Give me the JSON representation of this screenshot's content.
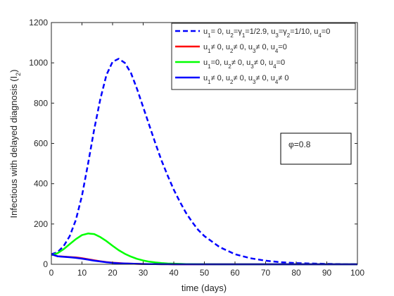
{
  "chart_data": {
    "type": "line",
    "xlabel": "time (days)",
    "ylabel": "Infectious with delayed diagnosis (I2)",
    "xlim": [
      0,
      100
    ],
    "ylim": [
      0,
      1200
    ],
    "xticks": [
      0,
      10,
      20,
      30,
      40,
      50,
      60,
      70,
      80,
      90,
      100
    ],
    "yticks": [
      0,
      200,
      400,
      600,
      800,
      1000,
      1200
    ],
    "grid": false,
    "legend_position": "top-right",
    "annotation": "φ=0.8",
    "x": [
      0,
      2,
      4,
      6,
      8,
      10,
      12,
      14,
      16,
      18,
      20,
      22,
      24,
      26,
      28,
      30,
      32,
      34,
      36,
      38,
      40,
      42,
      44,
      46,
      48,
      50,
      55,
      60,
      65,
      70,
      75,
      80,
      85,
      90,
      95,
      100
    ],
    "series": [
      {
        "name": "u1= 0, u2=γ1=1/2.9, u3=γ2=1/10, u4=0",
        "color": "#0000ff",
        "dash": "dashed",
        "values": [
          50,
          60,
          90,
          140,
          220,
          340,
          500,
          670,
          820,
          940,
          1005,
          1020,
          1000,
          950,
          870,
          780,
          690,
          600,
          515,
          440,
          370,
          310,
          255,
          210,
          170,
          140,
          85,
          50,
          30,
          18,
          10,
          6,
          4,
          2,
          1,
          1
        ]
      },
      {
        "name": "u1≠ 0, u2≠ 0, u3≠ 0, u4=0",
        "color": "#ff0000",
        "dash": "solid",
        "values": [
          50,
          40,
          38,
          36,
          34,
          30,
          25,
          20,
          15,
          11,
          8,
          6,
          4,
          3,
          2,
          1.5,
          1,
          1,
          0.5,
          0.5,
          0,
          0,
          0,
          0,
          0,
          0,
          0,
          0,
          0,
          0,
          0,
          0,
          0,
          0,
          0,
          0
        ]
      },
      {
        "name": "u1=0, u2≠ 0, u3≠ 0, u4=0",
        "color": "#00ff00",
        "dash": "solid",
        "values": [
          45,
          55,
          75,
          100,
          125,
          145,
          153,
          150,
          135,
          115,
          92,
          70,
          52,
          38,
          27,
          19,
          13,
          9,
          6,
          4,
          3,
          2,
          1,
          1,
          0.5,
          0.5,
          0,
          0,
          0,
          0,
          0,
          0,
          0,
          0,
          0,
          0
        ]
      },
      {
        "name": "u1≠ 0, u2≠ 0, u3≠ 0, u4≠ 0",
        "color": "#0000ff",
        "dash": "solid",
        "values": [
          50,
          40,
          37,
          35,
          32,
          28,
          23,
          18,
          14,
          10,
          7,
          5,
          4,
          3,
          2,
          1.5,
          1,
          1,
          0.5,
          0.5,
          0,
          0,
          0,
          0,
          0,
          0,
          0,
          0,
          0,
          0,
          0,
          0,
          0,
          0,
          0,
          0
        ]
      }
    ]
  }
}
